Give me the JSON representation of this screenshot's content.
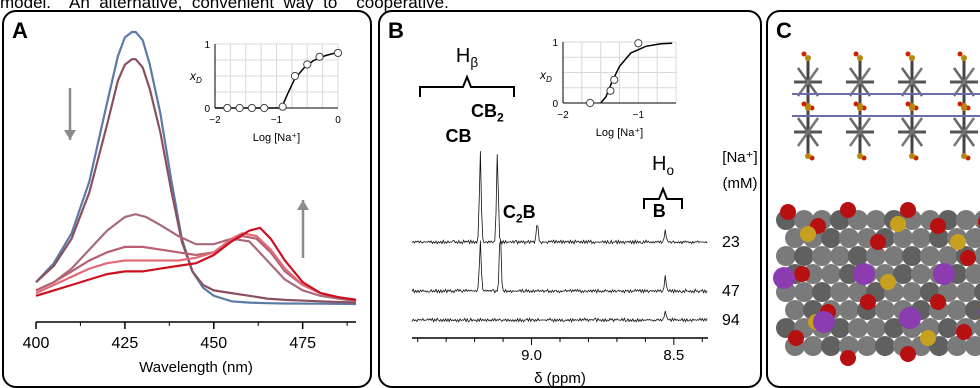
{
  "top_text": "model.    An  alternative,  convenient  way  to    cooperative.",
  "panels": {
    "a": "A",
    "b": "B",
    "c": "C"
  },
  "chart_data": [
    {
      "type": "line",
      "panel": "A",
      "xlabel": "Wavelength (nm)",
      "ylabel": "",
      "x_ticks": [
        400,
        425,
        450,
        475
      ],
      "xlim": [
        400,
        490
      ],
      "arrows": [
        "down",
        "up"
      ],
      "series": [
        {
          "color": "#5b7aa6",
          "x": [
            400,
            405,
            410,
            415,
            420,
            423,
            425,
            427,
            428,
            430,
            432,
            435,
            438,
            441,
            444,
            447,
            450,
            455,
            460,
            465,
            470,
            480,
            490
          ],
          "y": [
            0.08,
            0.15,
            0.26,
            0.45,
            0.74,
            0.91,
            0.98,
            1.0,
            1.0,
            0.97,
            0.88,
            0.7,
            0.46,
            0.24,
            0.12,
            0.06,
            0.03,
            0.01,
            0.005,
            0.003,
            0.002,
            0.001,
            0.0
          ]
        },
        {
          "color": "#8b5060",
          "x": [
            400,
            405,
            410,
            415,
            420,
            423,
            425,
            427,
            428,
            430,
            432,
            435,
            438,
            441,
            444,
            447,
            450,
            455,
            460,
            465,
            470,
            480,
            490
          ],
          "y": [
            0.08,
            0.14,
            0.24,
            0.41,
            0.66,
            0.82,
            0.88,
            0.9,
            0.9,
            0.87,
            0.79,
            0.63,
            0.42,
            0.23,
            0.12,
            0.07,
            0.05,
            0.04,
            0.03,
            0.02,
            0.015,
            0.01,
            0.005
          ]
        },
        {
          "color": "#a86a78",
          "x": [
            400,
            405,
            410,
            415,
            420,
            425,
            428,
            431,
            435,
            440,
            445,
            450,
            455,
            460,
            465,
            470,
            475,
            480,
            485,
            490
          ],
          "y": [
            0.05,
            0.08,
            0.13,
            0.2,
            0.27,
            0.32,
            0.33,
            0.32,
            0.29,
            0.25,
            0.22,
            0.22,
            0.24,
            0.23,
            0.16,
            0.09,
            0.05,
            0.03,
            0.02,
            0.01
          ]
        },
        {
          "color": "#b86072",
          "x": [
            400,
            405,
            410,
            415,
            420,
            425,
            430,
            435,
            440,
            445,
            450,
            455,
            458,
            462,
            466,
            470,
            475,
            480,
            485,
            490
          ],
          "y": [
            0.05,
            0.08,
            0.12,
            0.16,
            0.19,
            0.21,
            0.21,
            0.2,
            0.19,
            0.18,
            0.19,
            0.23,
            0.25,
            0.24,
            0.19,
            0.12,
            0.07,
            0.04,
            0.025,
            0.015
          ]
        },
        {
          "color": "#e06a78",
          "x": [
            400,
            405,
            410,
            415,
            420,
            425,
            430,
            435,
            440,
            445,
            450,
            455,
            458,
            462,
            466,
            470,
            475,
            480,
            485,
            490
          ],
          "y": [
            0.04,
            0.07,
            0.1,
            0.13,
            0.15,
            0.16,
            0.16,
            0.16,
            0.16,
            0.17,
            0.19,
            0.24,
            0.26,
            0.25,
            0.2,
            0.13,
            0.07,
            0.04,
            0.025,
            0.015
          ]
        },
        {
          "color": "#cc1020",
          "x": [
            400,
            405,
            410,
            415,
            420,
            425,
            430,
            435,
            440,
            445,
            450,
            455,
            460,
            463,
            466,
            470,
            475,
            480,
            485,
            490
          ],
          "y": [
            0.03,
            0.05,
            0.07,
            0.09,
            0.11,
            0.12,
            0.12,
            0.13,
            0.14,
            0.15,
            0.18,
            0.23,
            0.27,
            0.28,
            0.24,
            0.16,
            0.08,
            0.04,
            0.025,
            0.015
          ]
        }
      ],
      "inset": {
        "type": "scatter",
        "xlabel": "Log [Na⁺]",
        "ylabel": "x",
        "ylabel_sub": "D",
        "xlim": [
          -2,
          0
        ],
        "ylim": [
          0,
          1
        ],
        "x_ticks": [
          -2,
          -1,
          0
        ],
        "y_ticks": [
          0,
          1
        ],
        "points": [
          [
            -1.8,
            0.0
          ],
          [
            -1.6,
            0.0
          ],
          [
            -1.4,
            0.0
          ],
          [
            -1.2,
            0.0
          ],
          [
            -0.9,
            0.02
          ],
          [
            -0.7,
            0.5
          ],
          [
            -0.5,
            0.68
          ],
          [
            -0.3,
            0.8
          ],
          [
            0.0,
            0.86
          ]
        ],
        "curve": [
          [
            -1.0,
            0.0
          ],
          [
            -0.92,
            0.0
          ],
          [
            -0.82,
            0.22
          ],
          [
            -0.7,
            0.46
          ],
          [
            -0.55,
            0.63
          ],
          [
            -0.4,
            0.74
          ],
          [
            -0.2,
            0.82
          ],
          [
            0.0,
            0.87
          ]
        ]
      }
    },
    {
      "type": "line",
      "panel": "B",
      "xlabel": "δ (ppm)",
      "x_ticks": [
        9.0,
        8.5
      ],
      "x_tick_labels": [
        "9.0",
        "8.5"
      ],
      "xlim": [
        9.42,
        8.38
      ],
      "group_labels": {
        "h_beta": "H",
        "h_beta_sub": "β",
        "h_o": "H",
        "h_o_sub": "o"
      },
      "peak_labels": {
        "cb": "CB",
        "cb2": "CB",
        "cb2_sub": "2",
        "c2b": "C",
        "c2b_sub": "2",
        "c2b_tail": "B",
        "b": "B"
      },
      "conc_header": [
        "[Na⁺]",
        "(mM)"
      ],
      "concentrations": [
        "23",
        "47",
        "94"
      ],
      "traces": [
        {
          "peaks": [
            [
              9.18,
              1.0
            ],
            [
              9.12,
              1.0
            ],
            [
              8.98,
              0.22
            ],
            [
              8.53,
              0.13
            ]
          ]
        },
        {
          "peaks": [
            [
              9.18,
              0.72
            ],
            [
              9.11,
              0.9
            ],
            [
              8.53,
              0.22
            ]
          ]
        },
        {
          "peaks": [
            [
              8.53,
              0.35
            ]
          ]
        }
      ],
      "inset": {
        "type": "scatter",
        "xlabel": "Log [Na⁺]",
        "ylabel": "x",
        "ylabel_sub": "D",
        "xlim": [
          -2,
          -0.5
        ],
        "ylim": [
          0,
          1
        ],
        "x_ticks": [
          -2,
          -1
        ],
        "y_ticks": [
          0,
          1
        ],
        "points": [
          [
            -1.64,
            0.0
          ],
          [
            -1.37,
            0.2
          ],
          [
            -1.32,
            0.38
          ],
          [
            -1.0,
            0.98
          ]
        ],
        "curve": [
          [
            -1.5,
            0.0
          ],
          [
            -1.43,
            0.1
          ],
          [
            -1.35,
            0.35
          ],
          [
            -1.25,
            0.6
          ],
          [
            -1.1,
            0.82
          ],
          [
            -0.9,
            0.93
          ],
          [
            -0.7,
            0.97
          ],
          [
            -0.55,
            0.98
          ]
        ]
      }
    }
  ]
}
